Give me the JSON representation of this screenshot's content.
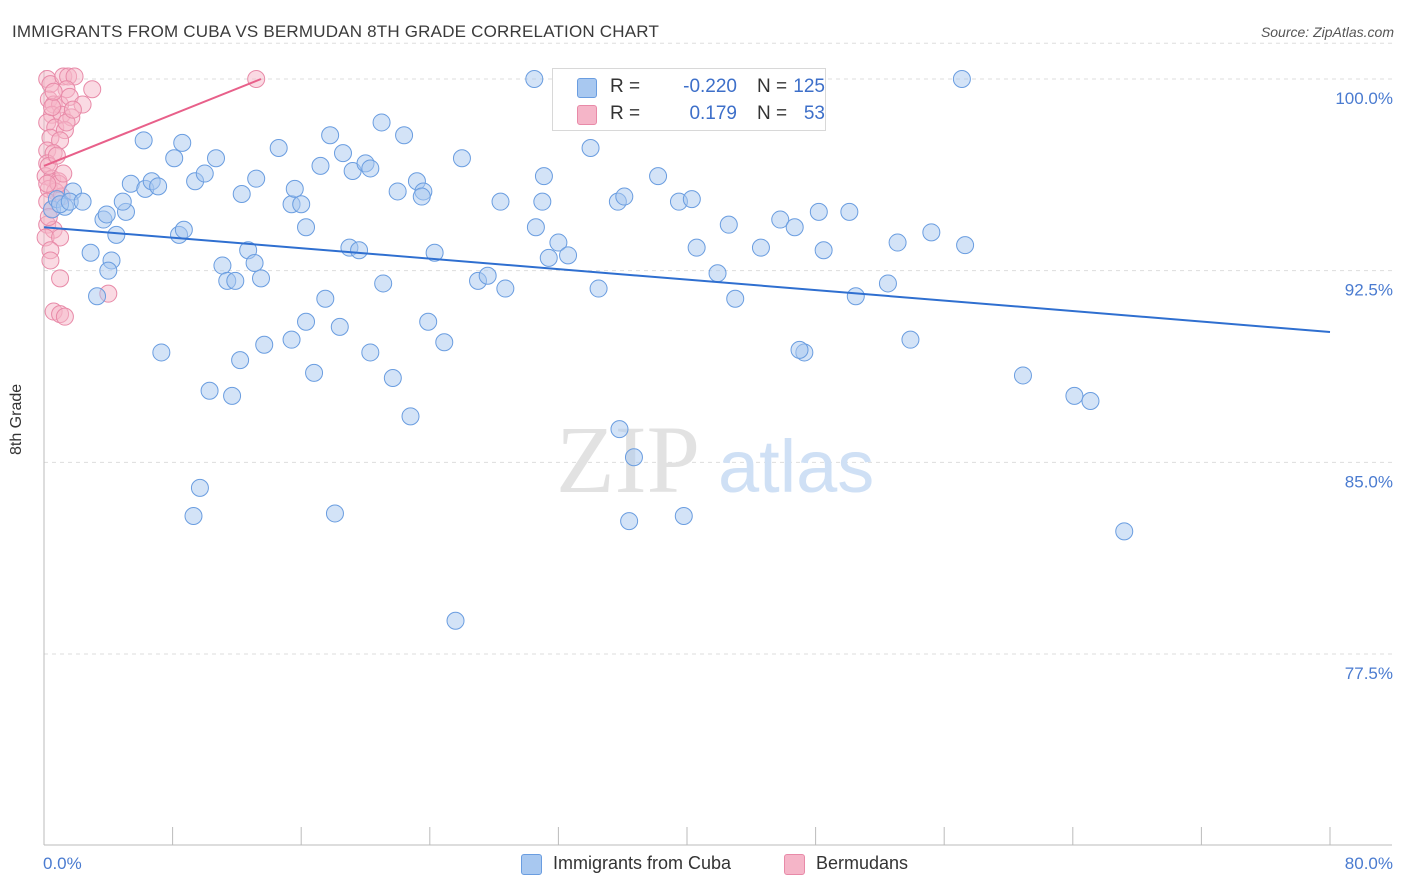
{
  "header": {
    "title": "IMMIGRANTS FROM CUBA VS BERMUDAN 8TH GRADE CORRELATION CHART",
    "source": "Source: ZipAtlas.com"
  },
  "watermark": {
    "zip": "ZIP",
    "atlas": "atlas"
  },
  "legend": {
    "r_label": "R =",
    "n_label": "N =",
    "rows": [
      {
        "r": "-0.220",
        "n": "125",
        "color": "#a8c8f0"
      },
      {
        "r": "0.179",
        "n": "53",
        "color": "#f5b5c8"
      }
    ]
  },
  "bottom_legend": [
    {
      "label": "Immigrants from Cuba",
      "color": "#a8c8f0"
    },
    {
      "label": "Bermudans",
      "color": "#f5b5c8"
    }
  ],
  "colors": {
    "blue_fill": "#a8c8f0",
    "blue_stroke": "#6a9de0",
    "blue_line": "#2f6fd0",
    "pink_fill": "#f5b5c8",
    "pink_stroke": "#e88aa8",
    "pink_line": "#e8608a",
    "tick_text": "#4a7bd0",
    "grid": "#dddddd"
  },
  "chart_data": {
    "type": "scatter",
    "title": "IMMIGRANTS FROM CUBA VS BERMUDAN 8TH GRADE CORRELATION CHART",
    "xlabel": "",
    "ylabel": "8th Grade",
    "xlim": [
      0,
      80
    ],
    "ylim": [
      70.5,
      101.5
    ],
    "x_tick_labels": [
      "0.0%",
      "80.0%"
    ],
    "y_ticks": [
      77.5,
      85.0,
      92.5,
      100.0
    ],
    "y_tick_labels": [
      "77.5%",
      "85.0%",
      "92.5%",
      "100.0%"
    ],
    "grid": true,
    "legend_position": "top-center",
    "series": [
      {
        "name": "Immigrants from Cuba",
        "r": -0.22,
        "n": 125,
        "trend": {
          "x": [
            0,
            80
          ],
          "y": [
            94.2,
            90.1
          ]
        },
        "points": [
          [
            0.5,
            94.9
          ],
          [
            0.8,
            95.3
          ],
          [
            1.3,
            95.0
          ],
          [
            1.8,
            95.6
          ],
          [
            1.0,
            95.1
          ],
          [
            1.6,
            95.2
          ],
          [
            2.4,
            95.2
          ],
          [
            3.7,
            94.5
          ],
          [
            4.5,
            93.9
          ],
          [
            2.9,
            93.2
          ],
          [
            4.2,
            92.9
          ],
          [
            4.0,
            92.5
          ],
          [
            3.3,
            91.5
          ],
          [
            3.9,
            94.7
          ],
          [
            5.1,
            94.8
          ],
          [
            4.9,
            95.2
          ],
          [
            5.4,
            95.9
          ],
          [
            6.3,
            95.7
          ],
          [
            6.7,
            96.0
          ],
          [
            6.2,
            97.6
          ],
          [
            7.1,
            95.8
          ],
          [
            8.1,
            96.9
          ],
          [
            8.6,
            97.5
          ],
          [
            9.4,
            96.0
          ],
          [
            10.0,
            96.3
          ],
          [
            10.7,
            96.9
          ],
          [
            8.4,
            93.9
          ],
          [
            8.7,
            94.1
          ],
          [
            11.1,
            92.7
          ],
          [
            11.4,
            92.1
          ],
          [
            11.9,
            92.1
          ],
          [
            12.7,
            93.3
          ],
          [
            13.1,
            92.8
          ],
          [
            13.5,
            92.2
          ],
          [
            12.3,
            95.5
          ],
          [
            13.2,
            96.1
          ],
          [
            14.6,
            97.3
          ],
          [
            15.4,
            95.1
          ],
          [
            15.6,
            95.7
          ],
          [
            16.0,
            95.1
          ],
          [
            16.3,
            94.2
          ],
          [
            17.2,
            96.6
          ],
          [
            17.8,
            97.8
          ],
          [
            18.6,
            97.1
          ],
          [
            19.2,
            96.4
          ],
          [
            20.0,
            96.7
          ],
          [
            20.3,
            96.5
          ],
          [
            21.0,
            98.3
          ],
          [
            22.4,
            97.8
          ],
          [
            22.0,
            95.6
          ],
          [
            23.2,
            96.0
          ],
          [
            23.6,
            95.6
          ],
          [
            23.5,
            95.4
          ],
          [
            24.3,
            93.2
          ],
          [
            19.0,
            93.4
          ],
          [
            19.6,
            93.3
          ],
          [
            7.3,
            89.3
          ],
          [
            10.3,
            87.8
          ],
          [
            11.7,
            87.6
          ],
          [
            12.2,
            89.0
          ],
          [
            13.7,
            89.6
          ],
          [
            15.4,
            89.8
          ],
          [
            16.3,
            90.5
          ],
          [
            16.8,
            88.5
          ],
          [
            17.5,
            91.4
          ],
          [
            18.4,
            90.3
          ],
          [
            20.3,
            89.3
          ],
          [
            21.1,
            92.0
          ],
          [
            21.7,
            88.3
          ],
          [
            22.8,
            86.8
          ],
          [
            23.9,
            90.5
          ],
          [
            24.9,
            89.7
          ],
          [
            9.7,
            84.0
          ],
          [
            9.3,
            82.9
          ],
          [
            18.1,
            83.0
          ],
          [
            25.6,
            78.8
          ],
          [
            26.0,
            96.9
          ],
          [
            27.0,
            92.1
          ],
          [
            27.6,
            92.3
          ],
          [
            28.7,
            91.8
          ],
          [
            28.4,
            95.2
          ],
          [
            30.6,
            94.2
          ],
          [
            31.1,
            96.2
          ],
          [
            31.4,
            93.0
          ],
          [
            32.0,
            93.6
          ],
          [
            32.6,
            93.1
          ],
          [
            34.0,
            97.3
          ],
          [
            31.0,
            95.2
          ],
          [
            30.5,
            100.0
          ],
          [
            34.5,
            91.8
          ],
          [
            35.7,
            95.2
          ],
          [
            36.1,
            95.4
          ],
          [
            35.8,
            86.3
          ],
          [
            36.7,
            85.2
          ],
          [
            36.4,
            82.7
          ],
          [
            38.2,
            96.2
          ],
          [
            39.5,
            95.2
          ],
          [
            40.3,
            95.3
          ],
          [
            39.8,
            82.9
          ],
          [
            40.6,
            93.4
          ],
          [
            41.9,
            92.4
          ],
          [
            42.6,
            94.3
          ],
          [
            43.0,
            91.4
          ],
          [
            44.6,
            93.4
          ],
          [
            45.8,
            94.5
          ],
          [
            46.7,
            94.2
          ],
          [
            47.3,
            89.3
          ],
          [
            47.0,
            89.4
          ],
          [
            48.2,
            94.8
          ],
          [
            48.5,
            93.3
          ],
          [
            50.1,
            94.8
          ],
          [
            50.5,
            91.5
          ],
          [
            52.5,
            92.0
          ],
          [
            53.1,
            93.6
          ],
          [
            53.9,
            89.8
          ],
          [
            55.2,
            94.0
          ],
          [
            57.1,
            100.0
          ],
          [
            57.3,
            93.5
          ],
          [
            60.9,
            88.4
          ],
          [
            64.1,
            87.6
          ],
          [
            65.1,
            87.4
          ],
          [
            67.2,
            82.3
          ]
        ]
      },
      {
        "name": "Bermudans",
        "r": 0.179,
        "n": 53,
        "trend": {
          "x": [
            0,
            13.5
          ],
          "y": [
            96.6,
            100.0
          ]
        },
        "points": [
          [
            0.2,
            100.0
          ],
          [
            0.4,
            99.8
          ],
          [
            1.2,
            100.1
          ],
          [
            1.5,
            100.1
          ],
          [
            1.9,
            100.1
          ],
          [
            1.4,
            99.6
          ],
          [
            3.0,
            99.6
          ],
          [
            0.3,
            99.2
          ],
          [
            0.6,
            99.0
          ],
          [
            1.0,
            99.0
          ],
          [
            1.6,
            99.3
          ],
          [
            2.4,
            99.0
          ],
          [
            0.5,
            98.6
          ],
          [
            1.1,
            98.6
          ],
          [
            1.7,
            98.5
          ],
          [
            0.2,
            98.3
          ],
          [
            0.7,
            98.1
          ],
          [
            1.3,
            98.0
          ],
          [
            0.4,
            97.7
          ],
          [
            1.0,
            97.6
          ],
          [
            0.2,
            97.2
          ],
          [
            0.6,
            97.1
          ],
          [
            0.2,
            96.7
          ],
          [
            0.1,
            96.2
          ],
          [
            0.5,
            96.1
          ],
          [
            0.9,
            96.0
          ],
          [
            0.3,
            95.7
          ],
          [
            0.7,
            95.6
          ],
          [
            1.1,
            95.4
          ],
          [
            0.2,
            95.2
          ],
          [
            0.5,
            94.9
          ],
          [
            0.2,
            94.3
          ],
          [
            0.6,
            94.1
          ],
          [
            0.1,
            93.8
          ],
          [
            1.0,
            93.8
          ],
          [
            0.4,
            93.3
          ],
          [
            1.0,
            92.2
          ],
          [
            4.0,
            91.6
          ],
          [
            0.6,
            90.9
          ],
          [
            1.0,
            90.8
          ],
          [
            1.3,
            90.7
          ],
          [
            13.2,
            100.0
          ],
          [
            0.3,
            96.6
          ],
          [
            0.8,
            97.0
          ],
          [
            0.5,
            98.9
          ],
          [
            1.4,
            98.3
          ],
          [
            0.9,
            95.9
          ],
          [
            0.3,
            94.6
          ],
          [
            0.6,
            99.5
          ],
          [
            1.8,
            98.8
          ],
          [
            0.2,
            95.9
          ],
          [
            1.2,
            96.3
          ],
          [
            0.4,
            92.9
          ]
        ]
      }
    ]
  }
}
